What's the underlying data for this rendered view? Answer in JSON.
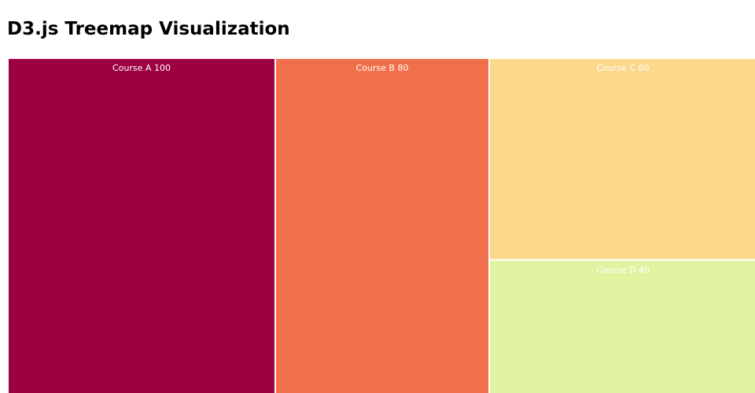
{
  "page": {
    "title": "D3.js Treemap Visualization"
  },
  "chart_data": {
    "type": "treemap",
    "title": "D3.js Treemap Visualization",
    "label_color": "#ffffff",
    "border_color": "#ffffff",
    "items": [
      {
        "name": "Course A",
        "value": 100,
        "label": "Course A 100",
        "color": "#9e0142"
      },
      {
        "name": "Course B",
        "value": 80,
        "label": "Course B 80",
        "color": "#f1704c"
      },
      {
        "name": "Course C",
        "value": 60,
        "label": "Course C 60",
        "color": "#fcd98a"
      },
      {
        "name": "Course D",
        "value": 40,
        "label": "Course D 40",
        "color": "#e0f3a1"
      }
    ]
  }
}
